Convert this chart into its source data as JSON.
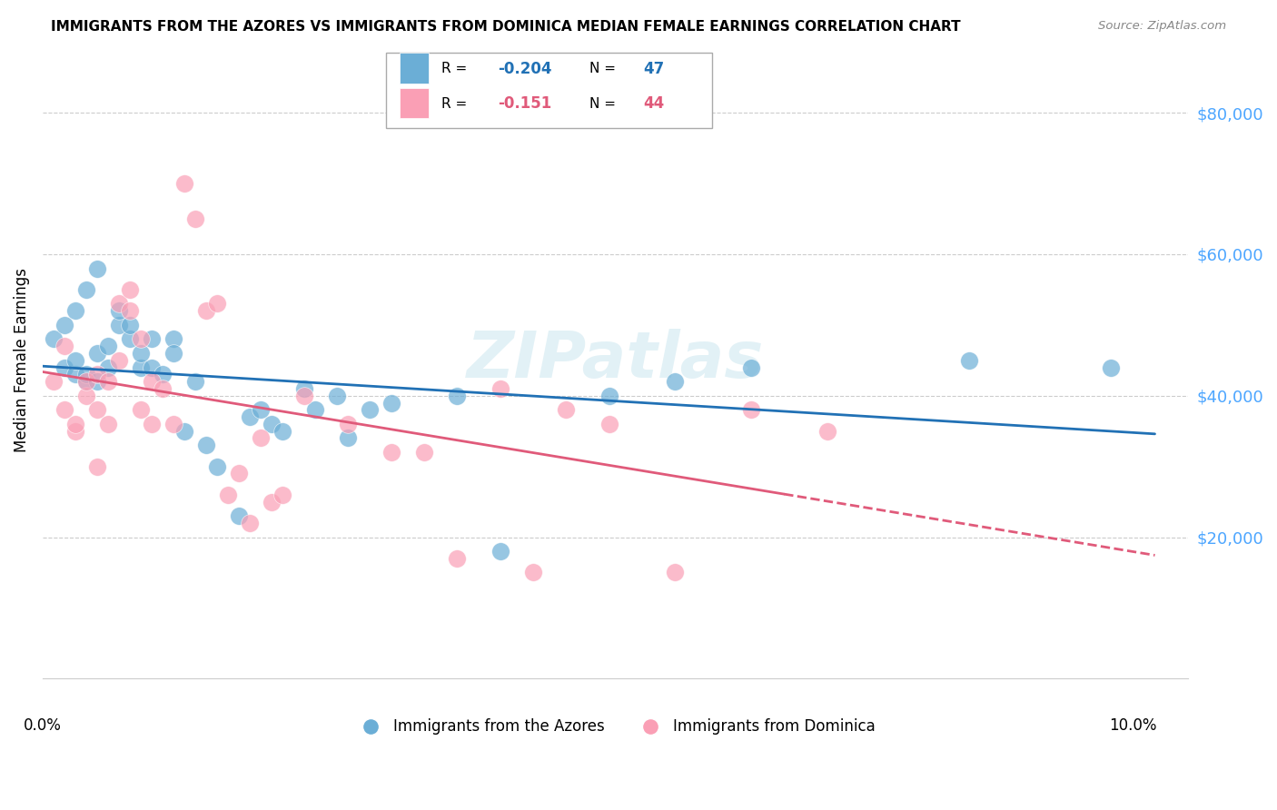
{
  "title": "IMMIGRANTS FROM THE AZORES VS IMMIGRANTS FROM DOMINICA MEDIAN FEMALE EARNINGS CORRELATION CHART",
  "source": "Source: ZipAtlas.com",
  "ylabel": "Median Female Earnings",
  "ytick_labels": [
    "$20,000",
    "$40,000",
    "$60,000",
    "$80,000"
  ],
  "ytick_values": [
    20000,
    40000,
    60000,
    80000
  ],
  "ylim": [
    0,
    90000
  ],
  "xlim": [
    0.0,
    0.105
  ],
  "label_azores": "Immigrants from the Azores",
  "label_dominica": "Immigrants from Dominica",
  "color_azores": "#6baed6",
  "color_dominica": "#fa9fb5",
  "color_azores_line": "#2171b5",
  "color_dominica_line": "#e05a7a",
  "color_ytick": "#4da6ff",
  "watermark": "ZIPatlas",
  "r_azores": "-0.204",
  "n_azores": "47",
  "r_dominica": "-0.151",
  "n_dominica": "44",
  "azores_x": [
    0.001,
    0.002,
    0.002,
    0.003,
    0.003,
    0.003,
    0.004,
    0.004,
    0.004,
    0.005,
    0.005,
    0.005,
    0.006,
    0.006,
    0.007,
    0.007,
    0.008,
    0.008,
    0.009,
    0.009,
    0.01,
    0.01,
    0.011,
    0.012,
    0.012,
    0.013,
    0.014,
    0.015,
    0.016,
    0.018,
    0.019,
    0.02,
    0.021,
    0.022,
    0.024,
    0.025,
    0.027,
    0.028,
    0.03,
    0.032,
    0.038,
    0.042,
    0.052,
    0.058,
    0.065,
    0.085,
    0.098
  ],
  "azores_y": [
    48000,
    44000,
    50000,
    43000,
    45000,
    52000,
    42000,
    43000,
    55000,
    58000,
    46000,
    42000,
    47000,
    44000,
    50000,
    52000,
    48000,
    50000,
    44000,
    46000,
    48000,
    44000,
    43000,
    48000,
    46000,
    35000,
    42000,
    33000,
    30000,
    23000,
    37000,
    38000,
    36000,
    35000,
    41000,
    38000,
    40000,
    34000,
    38000,
    39000,
    40000,
    18000,
    40000,
    42000,
    44000,
    45000,
    44000
  ],
  "dominica_x": [
    0.001,
    0.002,
    0.002,
    0.003,
    0.003,
    0.004,
    0.004,
    0.005,
    0.005,
    0.005,
    0.006,
    0.006,
    0.007,
    0.007,
    0.008,
    0.008,
    0.009,
    0.009,
    0.01,
    0.01,
    0.011,
    0.012,
    0.013,
    0.014,
    0.015,
    0.016,
    0.017,
    0.018,
    0.019,
    0.02,
    0.021,
    0.022,
    0.024,
    0.028,
    0.032,
    0.035,
    0.038,
    0.042,
    0.045,
    0.048,
    0.052,
    0.058,
    0.065,
    0.072
  ],
  "dominica_y": [
    42000,
    38000,
    47000,
    35000,
    36000,
    40000,
    42000,
    43000,
    38000,
    30000,
    42000,
    36000,
    53000,
    45000,
    52000,
    55000,
    48000,
    38000,
    42000,
    36000,
    41000,
    36000,
    70000,
    65000,
    52000,
    53000,
    26000,
    29000,
    22000,
    34000,
    25000,
    26000,
    40000,
    36000,
    32000,
    32000,
    17000,
    41000,
    15000,
    38000,
    36000,
    15000,
    38000,
    35000
  ]
}
